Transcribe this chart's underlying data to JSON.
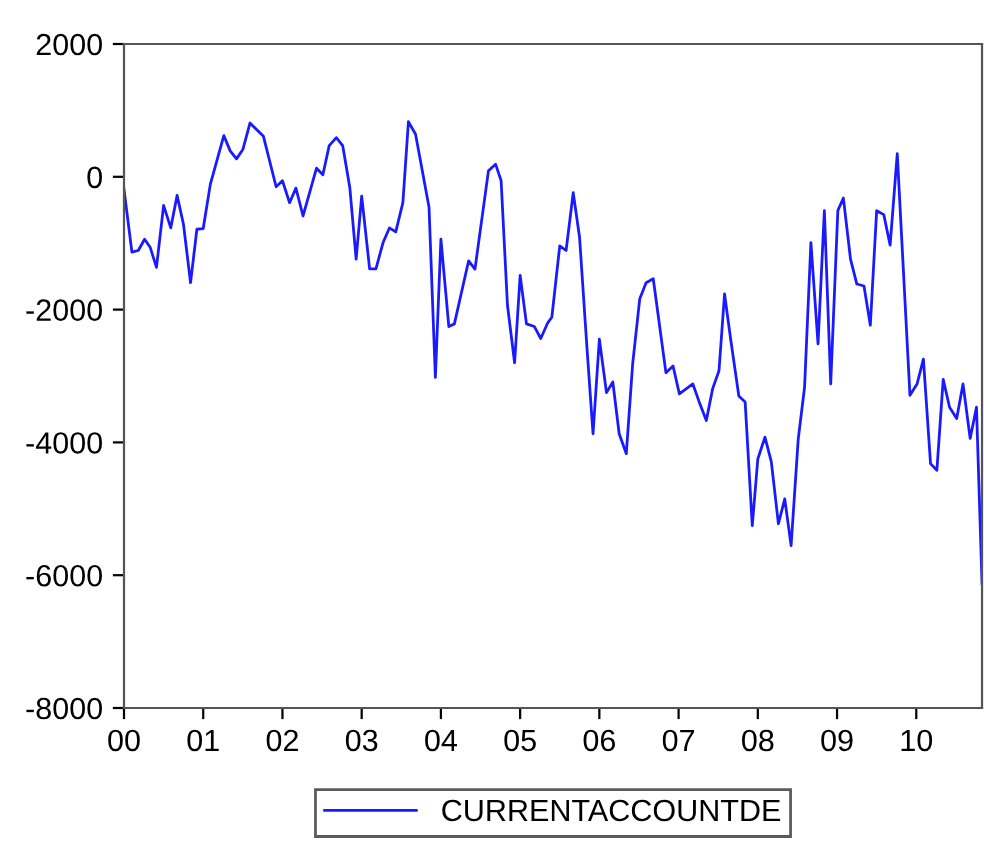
{
  "chart_data": {
    "type": "line",
    "xlim": [
      2000,
      2010.83
    ],
    "ylim": [
      -8000,
      2000
    ],
    "xticks": [
      {
        "value": 2000,
        "label": "00"
      },
      {
        "value": 2001,
        "label": "01"
      },
      {
        "value": 2002,
        "label": "02"
      },
      {
        "value": 2003,
        "label": "03"
      },
      {
        "value": 2004,
        "label": "04"
      },
      {
        "value": 2005,
        "label": "05"
      },
      {
        "value": 2006,
        "label": "06"
      },
      {
        "value": 2007,
        "label": "07"
      },
      {
        "value": 2008,
        "label": "08"
      },
      {
        "value": 2009,
        "label": "09"
      },
      {
        "value": 2010,
        "label": "10"
      }
    ],
    "yticks": [
      2000,
      0,
      {
        "value": -2000,
        "label": "-2000"
      },
      {
        "value": -4000,
        "label": "-4000"
      },
      {
        "value": -6000,
        "label": "-6000"
      },
      {
        "value": -8000,
        "label": "-8000"
      }
    ],
    "grid": false,
    "legend": "bottom",
    "marker": "none",
    "line_style": "solid",
    "series": [
      {
        "name": "CURRENTACCOUNTDE",
        "color": "#1a1aff",
        "x": [
          2000.0,
          2000.1,
          2000.18,
          2000.26,
          2000.33,
          2000.41,
          2000.5,
          2000.59,
          2000.67,
          2000.75,
          2000.84,
          2000.92,
          2001.0,
          2001.09,
          2001.26,
          2001.34,
          2001.42,
          2001.5,
          2001.59,
          2001.76,
          2001.92,
          2002.0,
          2002.09,
          2002.17,
          2002.26,
          2002.43,
          2002.51,
          2002.59,
          2002.68,
          2002.76,
          2002.85,
          2002.93,
          2003.0,
          2003.1,
          2003.18,
          2003.27,
          2003.35,
          2003.43,
          2003.52,
          2003.59,
          2003.68,
          2003.85,
          2003.93,
          2004.0,
          2004.1,
          2004.17,
          2004.35,
          2004.43,
          2004.6,
          2004.69,
          2004.76,
          2004.84,
          2004.93,
          2005.0,
          2005.08,
          2005.18,
          2005.26,
          2005.35,
          2005.4,
          2005.5,
          2005.58,
          2005.67,
          2005.75,
          2005.84,
          2005.92,
          2006.0,
          2006.09,
          2006.17,
          2006.25,
          2006.34,
          2006.42,
          2006.51,
          2006.59,
          2006.68,
          2006.84,
          2006.93,
          2007.01,
          2007.18,
          2007.26,
          2007.35,
          2007.43,
          2007.51,
          2007.58,
          2007.66,
          2007.76,
          2007.84,
          2007.93,
          2008.0,
          2008.09,
          2008.17,
          2008.26,
          2008.34,
          2008.42,
          2008.51,
          2008.59,
          2008.67,
          2008.76,
          2008.84,
          2008.92,
          2009.01,
          2009.08,
          2009.17,
          2009.25,
          2009.34,
          2009.42,
          2009.5,
          2009.59,
          2009.67,
          2009.76,
          2009.92,
          2010.01,
          2010.09,
          2010.18,
          2010.26,
          2010.34,
          2010.42,
          2010.51,
          2010.59,
          2010.68,
          2010.76,
          2010.83
        ],
        "values": [
          -190,
          -1135,
          -1110,
          -940,
          -1060,
          -1365,
          -430,
          -770,
          -280,
          -710,
          -1595,
          -790,
          -780,
          -110,
          620,
          390,
          270,
          410,
          810,
          610,
          -150,
          -60,
          -390,
          -170,
          -590,
          130,
          30,
          470,
          590,
          470,
          -160,
          -1240,
          -290,
          -1385,
          -1385,
          -990,
          -770,
          -830,
          -390,
          830,
          640,
          -460,
          -3020,
          -940,
          -2255,
          -2215,
          -1265,
          -1390,
          90,
          190,
          -60,
          -1935,
          -2800,
          -1485,
          -2215,
          -2255,
          -2435,
          -2195,
          -2115,
          -1040,
          -1110,
          -240,
          -910,
          -2515,
          -3870,
          -2445,
          -3250,
          -3090,
          -3870,
          -4170,
          -2820,
          -1835,
          -1595,
          -1535,
          -2950,
          -2850,
          -3270,
          -3120,
          -3390,
          -3670,
          -3190,
          -2920,
          -1765,
          -2470,
          -3300,
          -3390,
          -5255,
          -4250,
          -3920,
          -4290,
          -5225,
          -4850,
          -5555,
          -3950,
          -3170,
          -990,
          -2515,
          -510,
          -3120,
          -510,
          -320,
          -1240,
          -1615,
          -1645,
          -2235,
          -510,
          -570,
          -1030,
          350,
          -3290,
          -3120,
          -2745,
          -4320,
          -4420,
          -3050,
          -3470,
          -3640,
          -3120,
          -3940,
          -3470,
          -6125
        ]
      }
    ]
  }
}
